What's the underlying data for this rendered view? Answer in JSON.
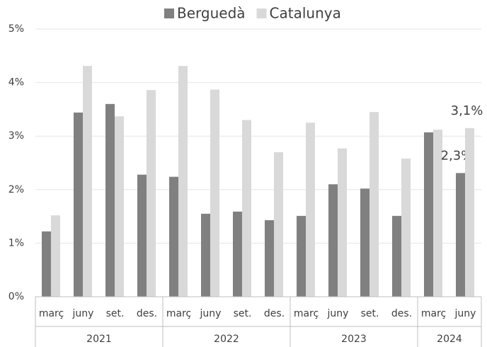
{
  "chart_data": {
    "type": "bar",
    "groups": [
      {
        "name": "2021",
        "categories": [
          "març",
          "juny",
          "set.",
          "des."
        ]
      },
      {
        "name": "2022",
        "categories": [
          "març",
          "juny",
          "set.",
          "des."
        ]
      },
      {
        "name": "2023",
        "categories": [
          "març",
          "juny",
          "set.",
          "des."
        ]
      },
      {
        "name": "2024",
        "categories": [
          "març",
          "juny"
        ]
      }
    ],
    "series": [
      {
        "name": "Berguedà",
        "color": "#808080",
        "values": [
          1.22,
          3.44,
          3.6,
          2.28,
          2.24,
          1.55,
          1.59,
          1.43,
          1.51,
          2.1,
          2.02,
          1.51,
          3.07,
          2.31
        ],
        "value_labels": [
          null,
          null,
          null,
          null,
          null,
          null,
          null,
          null,
          null,
          null,
          null,
          null,
          null,
          "2,3%"
        ]
      },
      {
        "name": "Catalunya",
        "color": "#d9d9d9",
        "values": [
          1.52,
          4.31,
          3.37,
          3.86,
          4.31,
          3.87,
          3.3,
          2.7,
          3.25,
          2.77,
          3.45,
          2.58,
          3.12,
          3.15
        ],
        "value_labels": [
          null,
          null,
          null,
          null,
          null,
          null,
          null,
          null,
          null,
          null,
          null,
          null,
          null,
          "3,1%"
        ]
      }
    ],
    "ylim": [
      0,
      5
    ],
    "yticks": [
      {
        "value": 0,
        "label": "0%"
      },
      {
        "value": 1,
        "label": "1%"
      },
      {
        "value": 2,
        "label": "2%"
      },
      {
        "value": 3,
        "label": "3%"
      },
      {
        "value": 4,
        "label": "4%"
      },
      {
        "value": 5,
        "label": "5%"
      }
    ],
    "grid": true,
    "legend": "top"
  }
}
